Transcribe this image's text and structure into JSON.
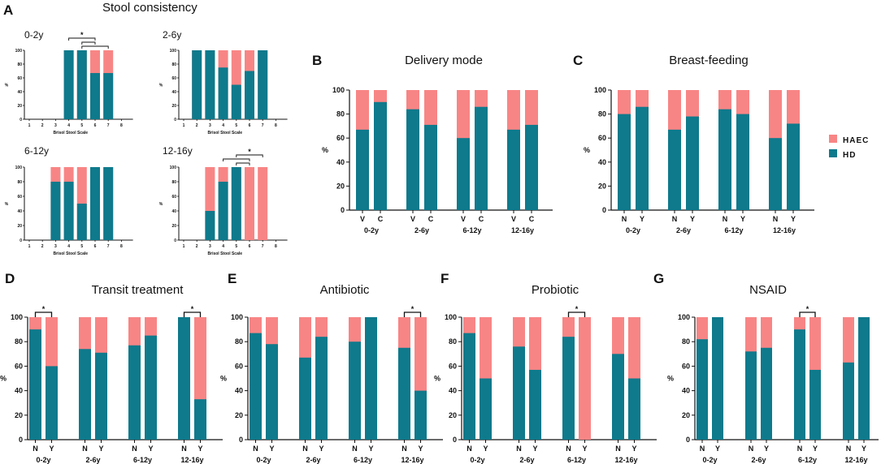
{
  "colors": {
    "haec": "#F88585",
    "hd": "#0E7A8C",
    "axis": "#111111"
  },
  "legend": {
    "haec": "HAEC",
    "hd": "HD"
  },
  "chart_data": [
    {
      "panel": "A",
      "title": "Stool consistency",
      "type": "bar",
      "stacked": true,
      "subplots": [
        {
          "title": "0-2y",
          "xlabel": "Brisol Stool Scale",
          "ylabel": "%",
          "ylim": [
            0,
            100
          ],
          "yticks": [
            "0",
            "20",
            "40",
            "60",
            "80",
            "100"
          ],
          "categories": [
            "1",
            "2",
            "3",
            "4",
            "5",
            "6",
            "7",
            "8"
          ],
          "hd": [
            null,
            null,
            null,
            100,
            100,
            67,
            67,
            null
          ],
          "brackets": [
            {
              "from": 4,
              "to": 6,
              "label": "*"
            },
            {
              "from": 5,
              "to": 6,
              "label": ""
            },
            {
              "from": 5,
              "to": 7,
              "label": ""
            }
          ]
        },
        {
          "title": "2-6y",
          "xlabel": "Brisol Stool Scale",
          "ylabel": "%",
          "ylim": [
            0,
            100
          ],
          "yticks": [
            "0",
            "20",
            "40",
            "60",
            "80",
            "100"
          ],
          "categories": [
            "1",
            "2",
            "3",
            "4",
            "5",
            "6",
            "7",
            "8"
          ],
          "hd": [
            null,
            100,
            100,
            75,
            50,
            70,
            100,
            null
          ],
          "brackets": []
        },
        {
          "title": "6-12y",
          "xlabel": "Brisol Stool Scale",
          "ylabel": "%",
          "ylim": [
            0,
            100
          ],
          "yticks": [
            "0",
            "20",
            "40",
            "60",
            "80",
            "100"
          ],
          "categories": [
            "1",
            "2",
            "3",
            "4",
            "5",
            "6",
            "7",
            "8"
          ],
          "hd": [
            null,
            null,
            80,
            80,
            50,
            100,
            100,
            null
          ],
          "brackets": []
        },
        {
          "title": "12-16y",
          "xlabel": "Brisol Stool Scale",
          "ylabel": "%",
          "ylim": [
            0,
            100
          ],
          "yticks": [
            "0",
            "20",
            "40",
            "60",
            "80",
            "100"
          ],
          "categories": [
            "1",
            "2",
            "3",
            "4",
            "5",
            "6",
            "7",
            "8"
          ],
          "hd": [
            null,
            null,
            40,
            80,
            100,
            0,
            0,
            null
          ],
          "brackets": [
            {
              "from": 5,
              "to": 7,
              "label": "*"
            },
            {
              "from": 4,
              "to": 6,
              "label": ""
            },
            {
              "from": 5,
              "to": 6,
              "label": ""
            }
          ]
        }
      ]
    },
    {
      "panel": "B",
      "title": "Delivery mode",
      "type": "bar",
      "stacked": true,
      "ylabel": "%",
      "ylim": [
        0,
        100
      ],
      "yticks": [
        "0",
        "20",
        "40",
        "60",
        "80",
        "100"
      ],
      "groups": [
        "0-2y",
        "2-6y",
        "6-12y",
        "12-16y"
      ],
      "categories": [
        "V",
        "C"
      ],
      "hd": [
        [
          67,
          90
        ],
        [
          84,
          71
        ],
        [
          60,
          86
        ],
        [
          67,
          71
        ]
      ],
      "brackets": []
    },
    {
      "panel": "C",
      "title": "Breast-feeding",
      "type": "bar",
      "stacked": true,
      "ylabel": "%",
      "ylim": [
        0,
        100
      ],
      "yticks": [
        "0",
        "20",
        "40",
        "60",
        "80",
        "100"
      ],
      "groups": [
        "0-2y",
        "2-6y",
        "6-12y",
        "12-16y"
      ],
      "categories": [
        "N",
        "Y"
      ],
      "hd": [
        [
          80,
          86
        ],
        [
          67,
          78
        ],
        [
          84,
          80
        ],
        [
          60,
          72
        ]
      ],
      "brackets": []
    },
    {
      "panel": "D",
      "title": "Transit treatment",
      "type": "bar",
      "stacked": true,
      "ylabel": "%",
      "ylim": [
        0,
        100
      ],
      "yticks": [
        "0",
        "20",
        "40",
        "60",
        "80",
        "100"
      ],
      "groups": [
        "0-2y",
        "2-6y",
        "6-12y",
        "12-16y"
      ],
      "categories": [
        "N",
        "Y"
      ],
      "hd": [
        [
          90,
          60
        ],
        [
          74,
          71
        ],
        [
          77,
          85
        ],
        [
          100,
          33
        ]
      ],
      "brackets": [
        {
          "group": 0,
          "label": "*"
        },
        {
          "group": 3,
          "label": "*"
        }
      ]
    },
    {
      "panel": "E",
      "title": "Antibiotic",
      "type": "bar",
      "stacked": true,
      "ylabel": "%",
      "ylim": [
        0,
        100
      ],
      "yticks": [
        "0",
        "20",
        "40",
        "60",
        "80",
        "100"
      ],
      "groups": [
        "0-2y",
        "2-6y",
        "6-12y",
        "12-16y"
      ],
      "categories": [
        "N",
        "Y"
      ],
      "hd": [
        [
          87,
          78
        ],
        [
          67,
          84
        ],
        [
          80,
          100
        ],
        [
          75,
          40
        ]
      ],
      "brackets": [
        {
          "group": 3,
          "label": "*"
        }
      ]
    },
    {
      "panel": "F",
      "title": "Probiotic",
      "type": "bar",
      "stacked": true,
      "ylabel": "%",
      "ylim": [
        0,
        100
      ],
      "yticks": [
        "0",
        "20",
        "40",
        "60",
        "80",
        "100"
      ],
      "groups": [
        "0-2y",
        "2-6y",
        "6-12y",
        "12-16y"
      ],
      "categories": [
        "N",
        "Y"
      ],
      "hd": [
        [
          87,
          50
        ],
        [
          76,
          57
        ],
        [
          84,
          0
        ],
        [
          70,
          50
        ]
      ],
      "brackets": [
        {
          "group": 2,
          "label": "*"
        }
      ]
    },
    {
      "panel": "G",
      "title": "NSAID",
      "type": "bar",
      "stacked": true,
      "ylabel": "%",
      "ylim": [
        0,
        100
      ],
      "yticks": [
        "0",
        "20",
        "40",
        "60",
        "80",
        "100"
      ],
      "groups": [
        "0-2y",
        "2-6y",
        "6-12y",
        "12-16y"
      ],
      "categories": [
        "N",
        "Y"
      ],
      "hd": [
        [
          82,
          100
        ],
        [
          72,
          75
        ],
        [
          90,
          57
        ],
        [
          63,
          100
        ]
      ],
      "brackets": [
        {
          "group": 2,
          "label": "*"
        }
      ]
    }
  ]
}
